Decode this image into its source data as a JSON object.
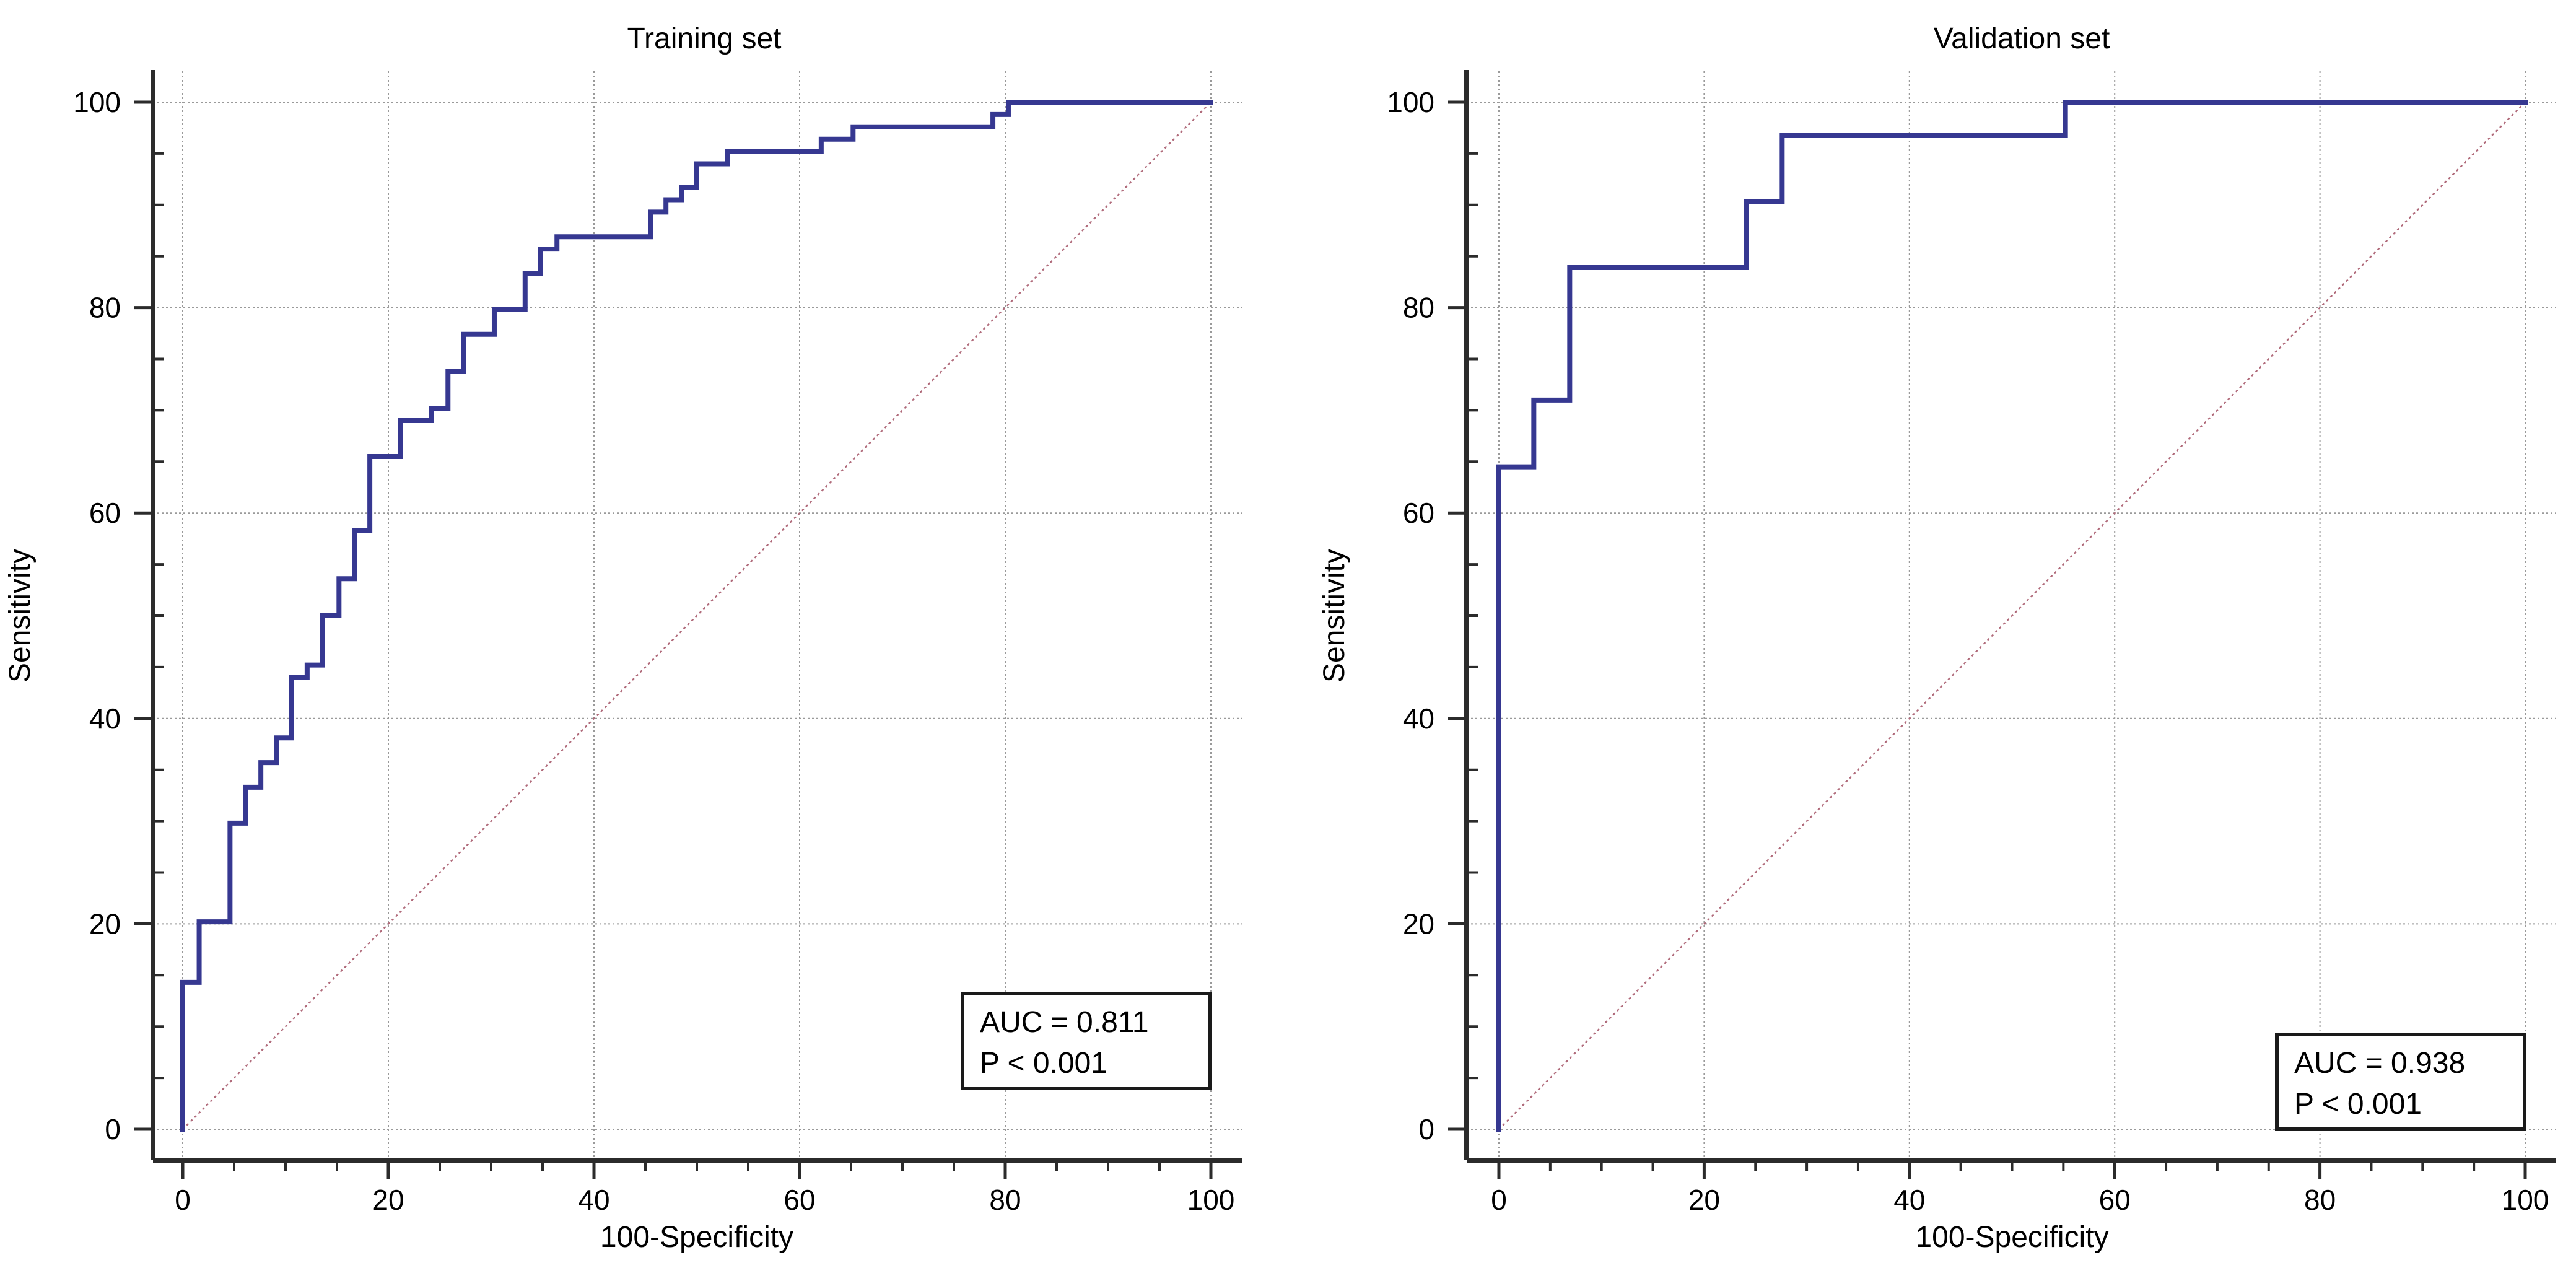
{
  "colors": {
    "roc": "#363891",
    "diagonal": "#b06a7a",
    "axis": "#2b2b2b",
    "grid": "#9a9a9a"
  },
  "chart_data": [
    {
      "type": "line",
      "title": "Training set",
      "xlabel": "100-Specificity",
      "ylabel": "Sensitivity",
      "xlim": [
        0,
        100
      ],
      "ylim": [
        0,
        100
      ],
      "xticks": [
        0,
        20,
        40,
        60,
        80,
        100
      ],
      "yticks": [
        0,
        20,
        40,
        60,
        80,
        100
      ],
      "grid": true,
      "legend_position": "bottom-right",
      "annotations": [
        "AUC = 0.811",
        "P < 0.001"
      ],
      "series": [
        {
          "name": "ROC curve",
          "step": true,
          "x": [
            0,
            1.6,
            4.6,
            6.1,
            7.6,
            9.1,
            10.6,
            12.1,
            13.6,
            15.2,
            16.7,
            18.2,
            21.2,
            24.2,
            25.8,
            27.3,
            30.3,
            33.3,
            34.8,
            36.4,
            45.5,
            47.0,
            48.5,
            50.0,
            53.0,
            62.1,
            65.2,
            78.8,
            80.3
          ],
          "y": [
            14.3,
            20.2,
            29.8,
            33.3,
            35.7,
            38.1,
            44.0,
            45.2,
            50.0,
            53.6,
            58.3,
            65.5,
            69.0,
            70.2,
            73.8,
            77.4,
            79.8,
            83.3,
            85.7,
            86.9,
            89.3,
            90.5,
            91.7,
            94.0,
            95.2,
            96.4,
            97.6,
            98.8,
            100
          ]
        },
        {
          "name": "Reference line",
          "x": [
            0,
            100
          ],
          "y": [
            0,
            100
          ]
        }
      ]
    },
    {
      "type": "line",
      "title": "Validation set",
      "xlabel": "100-Specificity",
      "ylabel": "Sensitivity",
      "xlim": [
        0,
        100
      ],
      "ylim": [
        0,
        100
      ],
      "xticks": [
        0,
        20,
        40,
        60,
        80,
        100
      ],
      "yticks": [
        0,
        20,
        40,
        60,
        80,
        100
      ],
      "grid": true,
      "legend_position": "bottom-right",
      "annotations": [
        "AUC = 0.938",
        "P < 0.001"
      ],
      "series": [
        {
          "name": "ROC curve",
          "step": true,
          "x": [
            0,
            3.4,
            6.9,
            24.1,
            27.6,
            55.2
          ],
          "y": [
            64.5,
            71.0,
            83.9,
            90.3,
            96.8,
            100
          ]
        },
        {
          "name": "Reference line",
          "x": [
            0,
            100
          ],
          "y": [
            0,
            100
          ]
        }
      ]
    }
  ]
}
